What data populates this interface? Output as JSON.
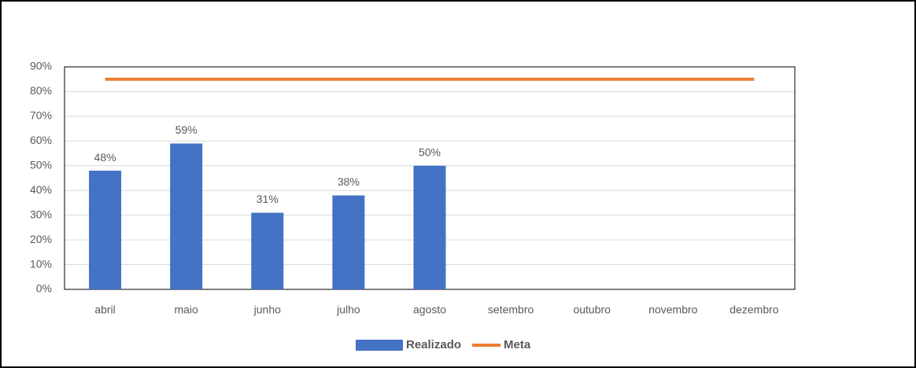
{
  "chart_data": {
    "type": "bar",
    "categories": [
      "abril",
      "maio",
      "junho",
      "julho",
      "agosto",
      "setembro",
      "outubro",
      "novembro",
      "dezembro"
    ],
    "series": [
      {
        "name": "Realizado",
        "type": "bar",
        "color": "#4472c4",
        "values": [
          48,
          59,
          31,
          38,
          50,
          null,
          null,
          null,
          null
        ],
        "value_labels": [
          "48%",
          "59%",
          "31%",
          "38%",
          "50%",
          null,
          null,
          null,
          null
        ]
      },
      {
        "name": "Meta",
        "type": "line",
        "color": "#ed7d31",
        "values": [
          85,
          85,
          85,
          85,
          85,
          85,
          85,
          85,
          85
        ]
      }
    ],
    "ylim": [
      0,
      90
    ],
    "yticks": [
      {
        "value": 0,
        "label": "0%"
      },
      {
        "value": 10,
        "label": "10%"
      },
      {
        "value": 20,
        "label": "20%"
      },
      {
        "value": 30,
        "label": "30%"
      },
      {
        "value": 40,
        "label": "40%"
      },
      {
        "value": 50,
        "label": "50%"
      },
      {
        "value": 60,
        "label": "60%"
      },
      {
        "value": 70,
        "label": "70%"
      },
      {
        "value": 80,
        "label": "80%"
      },
      {
        "value": 90,
        "label": "90%"
      }
    ],
    "grid": true,
    "legend": "bottom"
  }
}
